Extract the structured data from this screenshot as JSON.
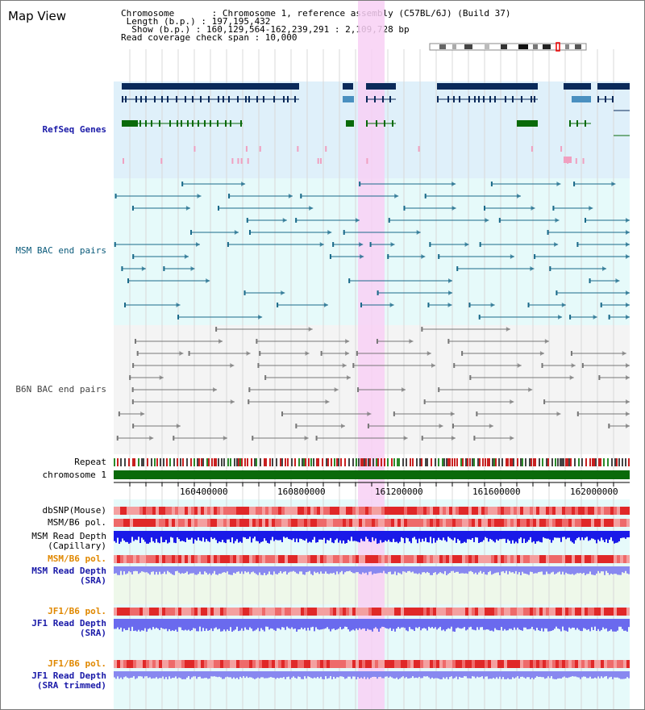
{
  "view_title": "Map View",
  "info_lines": [
    "Chromosome       : Chromosome 1, reference assembly (C57BL/6J) (Build 37)",
    " Length (b.p.) : 197,195,432",
    "  Show (b.p.) : 160,129,564-162,239,291 : 2,109,728 bp",
    "Read coverage check span : 10,000"
  ],
  "tracks": {
    "refseq": "RefSeq Genes",
    "msm_bac": "MSM BAC end pairs",
    "b6n_bac": "B6N BAC end pairs",
    "repeat": "Repeat",
    "chromosome": "chromosome 1",
    "dbsnp": "dbSNP(Mouse)",
    "msm_b6_pol_1": "MSM/B6 pol.",
    "msm_depth_cap_1": "MSM Read Depth",
    "msm_depth_cap_2": "(Capillary)",
    "msm_b6_pol_2": "MSM/B6 pol.",
    "msm_depth_sra_1": "MSM Read Depth",
    "msm_depth_sra_2": "(SRA)",
    "jf1_pol_1": "JF1/B6 pol.",
    "jf1_depth_sra_1": "JF1 Read Depth",
    "jf1_depth_sra_2": "(SRA)",
    "jf1_pol_2": "JF1/B6 pol.",
    "jf1_depth_trim_1": "JF1 Read Depth",
    "jf1_depth_trim_2": "(SRA trimmed)"
  },
  "ruler": {
    "ticks": [
      "160400000",
      "160800000",
      "161200000",
      "161600000",
      "162000000"
    ]
  },
  "colors": {
    "refseq_bg": "#dff0fa",
    "msm_bg": "#e6fafa",
    "b6n_bg": "#f4f4f4",
    "highlight": "#f8d0f4",
    "gene": "#0a2a5a",
    "gene_green": "#0a6a0a",
    "msm_line": "#1a6a8a",
    "b6n_line": "#777777",
    "depth_dark": "#1a1ae8",
    "depth_light": "#8888f0",
    "pol_red": "#e84040"
  }
}
